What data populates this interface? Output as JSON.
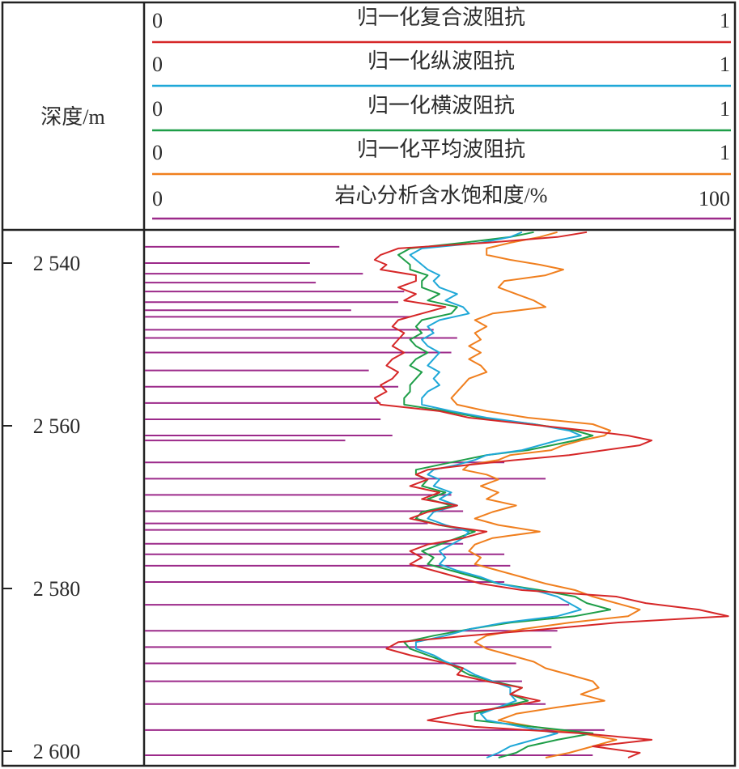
{
  "header": {
    "depth_label": "深度/m"
  },
  "chart_data": {
    "type": "line",
    "xlabel": "",
    "ylabel": "深度/m",
    "depth_ylim": [
      2536,
      2601
    ],
    "depth_ticks": [
      2540,
      2560,
      2580,
      2600
    ],
    "depth_tick_labels": [
      "2 540",
      "2 560",
      "2 580",
      "2 600"
    ],
    "grid": false,
    "series": [
      {
        "name": "归一化复合波阻抗",
        "color": "#d62728",
        "xlim": [
          0,
          1
        ],
        "scale_min_label": "0",
        "scale_max_label": "1",
        "depth": [
          2536.2,
          2536.8,
          2537.5,
          2538.2,
          2539.0,
          2539.6,
          2540.2,
          2540.8,
          2541.5,
          2542.2,
          2543.0,
          2543.8,
          2544.6,
          2545.4,
          2546.2,
          2547.0,
          2547.8,
          2548.6,
          2549.4,
          2550.2,
          2551.0,
          2551.8,
          2552.6,
          2553.4,
          2554.2,
          2555.0,
          2555.8,
          2556.6,
          2557.4,
          2558.2,
          2559.0,
          2559.8,
          2560.6,
          2561.2,
          2561.8,
          2562.4,
          2563.0,
          2563.6,
          2564.2,
          2564.8,
          2565.4,
          2566.0,
          2566.6,
          2567.4,
          2568.2,
          2569.0,
          2569.8,
          2570.6,
          2571.4,
          2572.2,
          2573.0,
          2573.8,
          2574.6,
          2575.4,
          2576.2,
          2577.0,
          2577.8,
          2578.6,
          2579.4,
          2580.2,
          2581.0,
          2581.8,
          2582.6,
          2583.4,
          2584.2,
          2585.0,
          2585.8,
          2586.6,
          2587.4,
          2588.2,
          2589.0,
          2589.8,
          2590.6,
          2591.4,
          2592.2,
          2593.0,
          2593.8,
          2594.6,
          2595.4,
          2596.2,
          2597.0,
          2597.8,
          2598.6,
          2599.4,
          2600.2,
          2600.8
        ],
        "values": [
          0.75,
          0.7,
          0.58,
          0.43,
          0.4,
          0.39,
          0.41,
          0.4,
          0.46,
          0.46,
          0.43,
          0.46,
          0.44,
          0.51,
          0.47,
          0.43,
          0.42,
          0.44,
          0.43,
          0.42,
          0.44,
          0.42,
          0.41,
          0.43,
          0.42,
          0.4,
          0.41,
          0.39,
          0.4,
          0.5,
          0.55,
          0.65,
          0.75,
          0.82,
          0.86,
          0.84,
          0.78,
          0.72,
          0.63,
          0.55,
          0.48,
          0.46,
          0.48,
          0.45,
          0.5,
          0.47,
          0.53,
          0.48,
          0.45,
          0.5,
          0.58,
          0.54,
          0.48,
          0.45,
          0.47,
          0.45,
          0.49,
          0.53,
          0.57,
          0.64,
          0.8,
          0.85,
          0.94,
          0.99,
          0.8,
          0.68,
          0.55,
          0.43,
          0.41,
          0.45,
          0.5,
          0.54,
          0.53,
          0.58,
          0.64,
          0.62,
          0.67,
          0.61,
          0.53,
          0.48,
          0.56,
          0.74,
          0.86,
          0.76,
          0.84,
          0.82
        ]
      },
      {
        "name": "归一化纵波阻抗",
        "color": "#1fa8d8",
        "xlim": [
          0,
          1
        ],
        "scale_min_label": "0",
        "scale_max_label": "1",
        "depth": [
          2536.2,
          2536.8,
          2537.5,
          2538.2,
          2539.0,
          2539.6,
          2540.2,
          2540.8,
          2541.5,
          2542.2,
          2543.0,
          2543.8,
          2544.6,
          2545.4,
          2546.2,
          2547.0,
          2547.8,
          2548.6,
          2549.4,
          2550.2,
          2551.0,
          2551.8,
          2552.6,
          2553.4,
          2554.2,
          2555.0,
          2555.8,
          2556.6,
          2557.4,
          2558.2,
          2559.0,
          2559.8,
          2560.6,
          2561.2,
          2561.8,
          2562.4,
          2563.0,
          2563.6,
          2564.2,
          2564.8,
          2565.4,
          2566.0,
          2566.6,
          2567.4,
          2568.2,
          2569.0,
          2569.8,
          2570.6,
          2571.4,
          2572.2,
          2573.0,
          2573.8,
          2574.6,
          2575.4,
          2576.2,
          2577.0,
          2577.8,
          2578.6,
          2579.4,
          2580.2,
          2581.0,
          2581.8,
          2582.6,
          2583.4,
          2584.2,
          2585.0,
          2585.8,
          2586.6,
          2587.4,
          2588.2,
          2589.0,
          2589.8,
          2590.6,
          2591.4,
          2592.2,
          2593.0,
          2593.8,
          2594.6,
          2595.4,
          2596.2,
          2597.0,
          2597.8,
          2598.6,
          2599.4,
          2600.2,
          2600.8
        ],
        "values": [
          0.64,
          0.62,
          0.57,
          0.47,
          0.45,
          0.46,
          0.47,
          0.48,
          0.5,
          0.49,
          0.5,
          0.53,
          0.51,
          0.54,
          0.55,
          0.5,
          0.48,
          0.49,
          0.47,
          0.48,
          0.5,
          0.49,
          0.48,
          0.5,
          0.49,
          0.5,
          0.48,
          0.47,
          0.47,
          0.52,
          0.58,
          0.66,
          0.72,
          0.74,
          0.7,
          0.67,
          0.64,
          0.58,
          0.56,
          0.53,
          0.49,
          0.48,
          0.5,
          0.49,
          0.52,
          0.5,
          0.53,
          0.49,
          0.48,
          0.51,
          0.55,
          0.54,
          0.52,
          0.5,
          0.51,
          0.5,
          0.53,
          0.57,
          0.6,
          0.66,
          0.7,
          0.72,
          0.74,
          0.7,
          0.61,
          0.55,
          0.51,
          0.46,
          0.46,
          0.49,
          0.51,
          0.54,
          0.56,
          0.59,
          0.62,
          0.62,
          0.63,
          0.6,
          0.57,
          0.58,
          0.64,
          0.7,
          0.66,
          0.62,
          0.6,
          0.58
        ]
      },
      {
        "name": "归一化横波阻抗",
        "color": "#1e9e48",
        "xlim": [
          0,
          1
        ],
        "scale_min_label": "0",
        "scale_max_label": "1",
        "depth": [
          2536.2,
          2536.8,
          2537.5,
          2538.2,
          2539.0,
          2539.6,
          2540.2,
          2540.8,
          2541.5,
          2542.2,
          2543.0,
          2543.8,
          2544.6,
          2545.4,
          2546.2,
          2547.0,
          2547.8,
          2548.6,
          2549.4,
          2550.2,
          2551.0,
          2551.8,
          2552.6,
          2553.4,
          2554.2,
          2555.0,
          2555.8,
          2556.6,
          2557.4,
          2558.2,
          2559.0,
          2559.8,
          2560.6,
          2561.2,
          2561.8,
          2562.4,
          2563.0,
          2563.6,
          2564.2,
          2564.8,
          2565.4,
          2566.0,
          2566.6,
          2567.4,
          2568.2,
          2569.0,
          2569.8,
          2570.6,
          2571.4,
          2572.2,
          2573.0,
          2573.8,
          2574.6,
          2575.4,
          2576.2,
          2577.0,
          2577.8,
          2578.6,
          2579.4,
          2580.2,
          2581.0,
          2581.8,
          2582.6,
          2583.4,
          2584.2,
          2585.0,
          2585.8,
          2586.6,
          2587.4,
          2588.2,
          2589.0,
          2589.8,
          2590.6,
          2591.4,
          2592.2,
          2593.0,
          2593.8,
          2594.6,
          2595.4,
          2596.2,
          2597.0,
          2597.8,
          2598.6,
          2599.4,
          2600.2,
          2600.8
        ],
        "values": [
          0.66,
          0.62,
          0.54,
          0.45,
          0.43,
          0.44,
          0.45,
          0.45,
          0.48,
          0.47,
          0.47,
          0.5,
          0.48,
          0.53,
          0.52,
          0.47,
          0.46,
          0.47,
          0.45,
          0.46,
          0.48,
          0.46,
          0.45,
          0.47,
          0.46,
          0.45,
          0.45,
          0.44,
          0.44,
          0.51,
          0.57,
          0.66,
          0.73,
          0.76,
          0.73,
          0.69,
          0.65,
          0.58,
          0.54,
          0.5,
          0.46,
          0.46,
          0.48,
          0.47,
          0.51,
          0.48,
          0.52,
          0.47,
          0.46,
          0.5,
          0.56,
          0.53,
          0.5,
          0.47,
          0.49,
          0.48,
          0.52,
          0.56,
          0.6,
          0.67,
          0.73,
          0.75,
          0.79,
          0.73,
          0.62,
          0.55,
          0.49,
          0.44,
          0.45,
          0.48,
          0.51,
          0.53,
          0.55,
          0.59,
          0.64,
          0.62,
          0.65,
          0.6,
          0.56,
          0.56,
          0.66,
          0.76,
          0.7,
          0.65,
          0.63,
          0.6
        ]
      },
      {
        "name": "归一化平均波阻抗",
        "color": "#f07f1e",
        "xlim": [
          0,
          1
        ],
        "scale_min_label": "0",
        "scale_max_label": "1",
        "depth": [
          2536.2,
          2536.8,
          2537.5,
          2538.2,
          2539.0,
          2539.6,
          2540.2,
          2540.8,
          2541.5,
          2542.2,
          2543.0,
          2543.8,
          2544.6,
          2545.4,
          2546.2,
          2547.0,
          2547.8,
          2548.6,
          2549.4,
          2550.2,
          2551.0,
          2551.8,
          2552.6,
          2553.4,
          2554.2,
          2555.0,
          2555.8,
          2556.6,
          2557.4,
          2558.2,
          2559.0,
          2559.8,
          2560.6,
          2561.2,
          2561.8,
          2562.4,
          2563.0,
          2563.6,
          2564.2,
          2564.8,
          2565.4,
          2566.0,
          2566.6,
          2567.4,
          2568.2,
          2569.0,
          2569.8,
          2570.6,
          2571.4,
          2572.2,
          2573.0,
          2573.8,
          2574.6,
          2575.4,
          2576.2,
          2577.0,
          2577.8,
          2578.6,
          2579.4,
          2580.2,
          2581.0,
          2581.8,
          2582.6,
          2583.4,
          2584.2,
          2585.0,
          2585.8,
          2586.6,
          2587.4,
          2588.2,
          2589.0,
          2589.8,
          2590.6,
          2591.4,
          2592.2,
          2593.0,
          2593.8,
          2594.6,
          2595.4,
          2596.2,
          2597.0,
          2597.8,
          2598.6,
          2599.4,
          2600.2,
          2600.8
        ],
        "values": [
          0.7,
          0.67,
          0.62,
          0.58,
          0.58,
          0.62,
          0.67,
          0.71,
          0.68,
          0.61,
          0.6,
          0.63,
          0.66,
          0.68,
          0.59,
          0.56,
          0.58,
          0.56,
          0.57,
          0.55,
          0.57,
          0.55,
          0.57,
          0.58,
          0.55,
          0.54,
          0.53,
          0.52,
          0.53,
          0.58,
          0.65,
          0.76,
          0.79,
          0.78,
          0.74,
          0.71,
          0.69,
          0.62,
          0.6,
          0.55,
          0.54,
          0.58,
          0.6,
          0.57,
          0.6,
          0.58,
          0.63,
          0.59,
          0.56,
          0.6,
          0.67,
          0.59,
          0.56,
          0.55,
          0.57,
          0.56,
          0.6,
          0.64,
          0.68,
          0.73,
          0.76,
          0.8,
          0.84,
          0.82,
          0.72,
          0.64,
          0.58,
          0.56,
          0.58,
          0.62,
          0.66,
          0.68,
          0.72,
          0.76,
          0.77,
          0.74,
          0.78,
          0.7,
          0.63,
          0.6,
          0.66,
          0.74,
          0.8,
          0.76,
          0.72,
          0.68
        ]
      },
      {
        "name": "岩心分析含水饱和度/%",
        "color": "#9c2a8a",
        "style": "horizontal-bars",
        "xlim": [
          0,
          100
        ],
        "scale_min_label": "0",
        "scale_max_label": "100",
        "depth": [
          2538.0,
          2540.0,
          2541.3,
          2542.4,
          2543.5,
          2544.8,
          2545.8,
          2546.6,
          2548.2,
          2549.2,
          2551.0,
          2553.2,
          2555.2,
          2557.2,
          2559.2,
          2561.2,
          2561.8,
          2564.5,
          2566.5,
          2568.5,
          2570.5,
          2572.0,
          2572.8,
          2574.5,
          2575.8,
          2577.2,
          2579.2,
          2582.0,
          2585.2,
          2587.2,
          2589.2,
          2591.4,
          2594.2,
          2597.4,
          2600.5
        ],
        "values": [
          33,
          28,
          37,
          29,
          44,
          43,
          35,
          45,
          49,
          53,
          52,
          38,
          43,
          40,
          40,
          42,
          34,
          61,
          68,
          52,
          54,
          48,
          55,
          54,
          61,
          62,
          61,
          72,
          70,
          69,
          63,
          64,
          68,
          78,
          76
        ]
      }
    ]
  }
}
